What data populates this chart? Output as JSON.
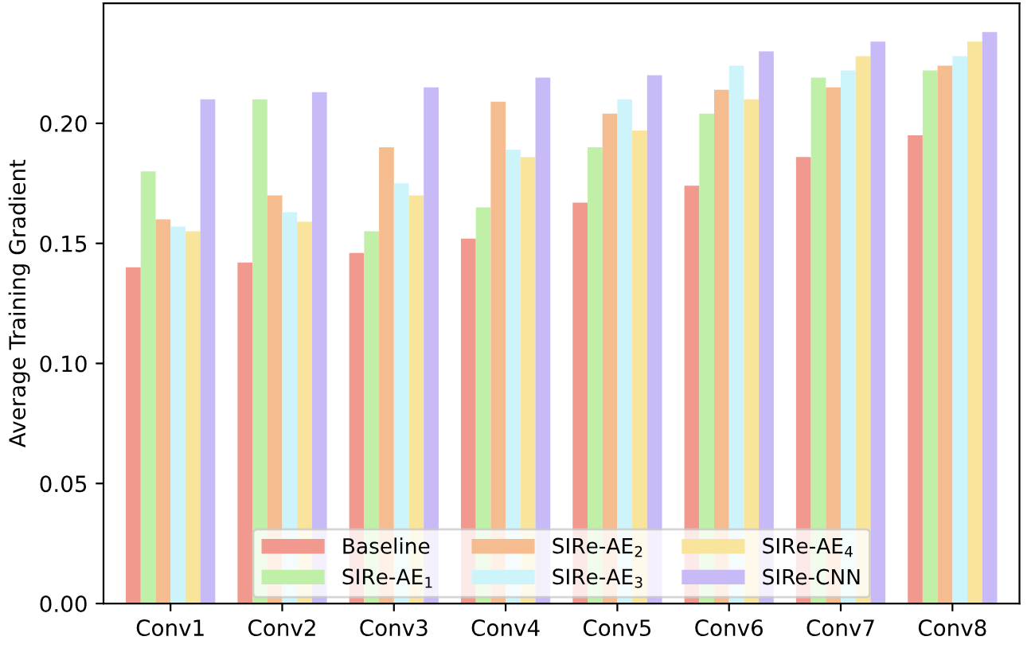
{
  "chart_data": {
    "type": "bar",
    "ylabel": "Average Training Gradient",
    "categories": [
      "Conv1",
      "Conv2",
      "Conv3",
      "Conv4",
      "Conv5",
      "Conv6",
      "Conv7",
      "Conv8"
    ],
    "series": [
      {
        "name": "Baseline",
        "color": "#f1998f",
        "values": [
          0.14,
          0.142,
          0.146,
          0.152,
          0.167,
          0.174,
          0.186,
          0.195
        ]
      },
      {
        "name": "SIRe-AE$_{1}$",
        "color": "#c0f0a8",
        "values": [
          0.18,
          0.21,
          0.155,
          0.165,
          0.19,
          0.204,
          0.219,
          0.222
        ]
      },
      {
        "name": "SIRe-AE$_{2}$",
        "color": "#f5bc8f",
        "values": [
          0.16,
          0.17,
          0.19,
          0.209,
          0.204,
          0.214,
          0.215,
          0.224
        ]
      },
      {
        "name": "SIRe-AE$_{3}$",
        "color": "#cdf4fa",
        "values": [
          0.157,
          0.163,
          0.175,
          0.189,
          0.21,
          0.224,
          0.222,
          0.228
        ]
      },
      {
        "name": "SIRe-AE$_{4}$",
        "color": "#f9e49c",
        "values": [
          0.155,
          0.159,
          0.17,
          0.186,
          0.197,
          0.21,
          0.228,
          0.234
        ]
      },
      {
        "name": "SIRe-CNN",
        "color": "#c8b9f7",
        "values": [
          0.21,
          0.213,
          0.215,
          0.219,
          0.22,
          0.23,
          0.234,
          0.238
        ]
      }
    ],
    "ylim": [
      0,
      0.25
    ],
    "yticks": [
      {
        "value": 0,
        "label": "0.00"
      },
      0.05,
      {
        "value": 0.1,
        "label": "0.10"
      },
      0.15,
      {
        "value": 0.2,
        "label": "0.20"
      }
    ],
    "grid": false,
    "legend": "bottom"
  }
}
